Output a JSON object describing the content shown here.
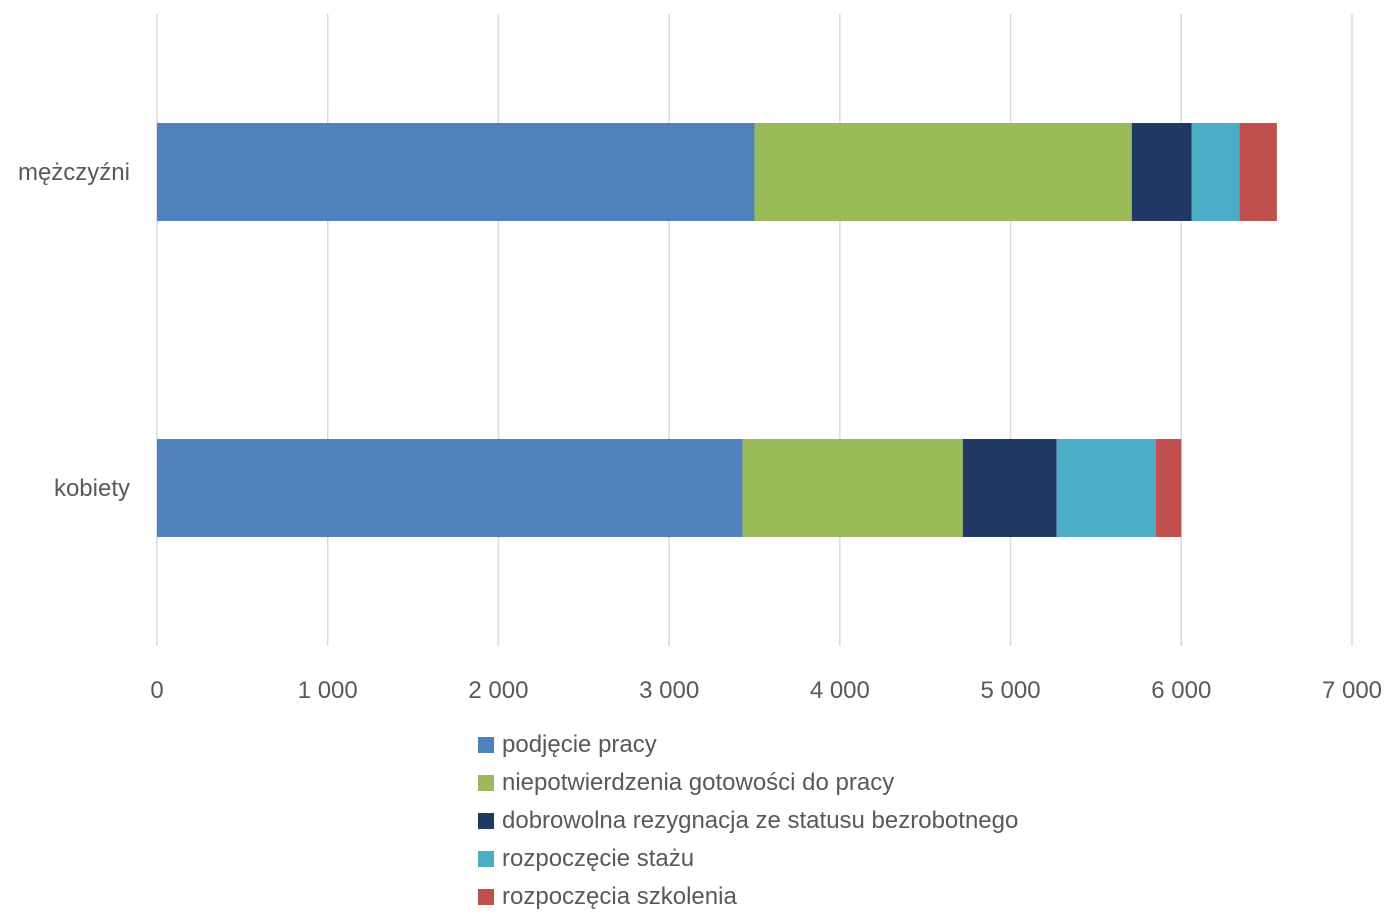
{
  "chart_data": {
    "type": "bar",
    "orientation": "horizontal",
    "stacked": true,
    "categories": [
      "mężczyźni",
      "kobiety"
    ],
    "series": [
      {
        "name": "podjęcie pracy",
        "color": "#4F81BD",
        "values": [
          3500,
          3430
        ]
      },
      {
        "name": "niepotwierdzenia gotowości do pracy",
        "color": "#9BBB59",
        "values": [
          2210,
          1290
        ]
      },
      {
        "name": "dobrowolna rezygnacja ze statusu bezrobotnego",
        "color": "#1F3864",
        "values": [
          350,
          550
        ]
      },
      {
        "name": "rozpoczęcie stażu",
        "color": "#4BACC6",
        "values": [
          280,
          580
        ]
      },
      {
        "name": "rozpoczęcia szkolenia",
        "color": "#C0504D",
        "values": [
          220,
          150
        ]
      }
    ],
    "xlim": [
      0,
      7000
    ],
    "xticks": [
      0,
      1000,
      2000,
      3000,
      4000,
      5000,
      6000,
      7000
    ],
    "xtick_labels": [
      "0",
      "1 000",
      "2 000",
      "3 000",
      "4 000",
      "5 000",
      "6 000",
      "7 000"
    ],
    "grid": true,
    "legend_position": "bottom",
    "gridline_color": "#D9D9D9"
  }
}
